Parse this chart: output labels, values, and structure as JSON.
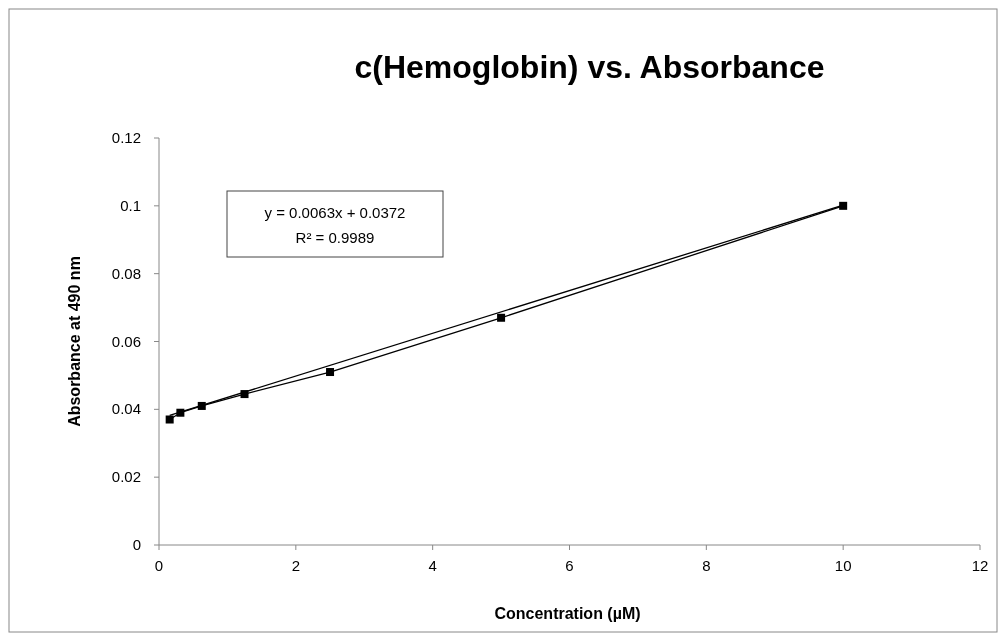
{
  "chart_data": {
    "type": "line",
    "title": "c(Hemoglobin) vs. Absorbance",
    "xlabel": "Concentration (µM)",
    "ylabel": "Absorbance at 490 nm",
    "xlim": [
      0,
      12
    ],
    "xticks": [
      0,
      2,
      4,
      6,
      8,
      10,
      12
    ],
    "ylim": [
      0,
      0.12
    ],
    "yticks": [
      0,
      0.02,
      0.04,
      0.06,
      0.08,
      0.1,
      0.12
    ],
    "grid": false,
    "line_style": "solid",
    "series": [
      {
        "color": "#000000",
        "marker": "square",
        "x": [
          0.156,
          0.3125,
          0.625,
          1.25,
          2.5,
          5,
          10
        ],
        "values": [
          0.037,
          0.039,
          0.041,
          0.0445,
          0.051,
          0.067,
          0.1
        ]
      },
      {
        "type": "line",
        "color": "#000000",
        "marker": "none",
        "x": [
          0.156,
          10
        ],
        "values": [
          0.0382,
          0.1002
        ]
      }
    ],
    "annotations": [
      "y = 0.0063x + 0.0372",
      "R² = 0.9989"
    ]
  }
}
